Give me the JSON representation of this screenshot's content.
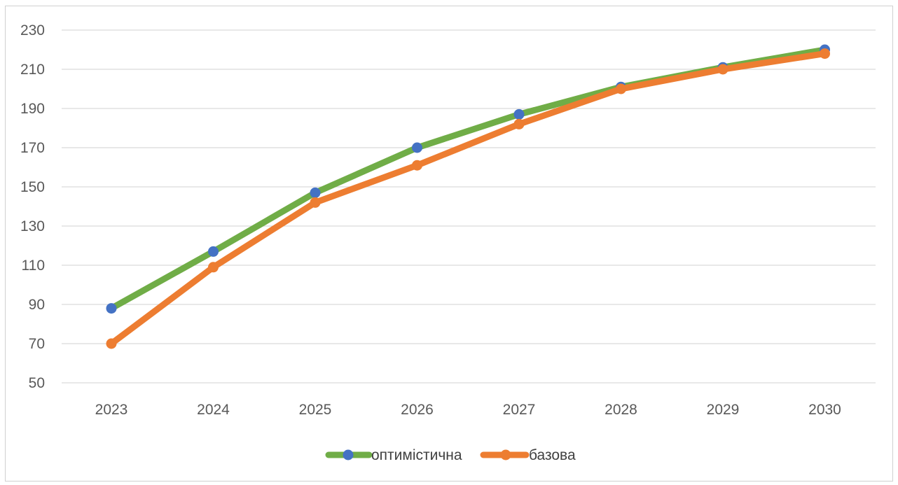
{
  "chart_data": {
    "type": "line",
    "title": "",
    "xlabel": "",
    "ylabel": "",
    "categories": [
      "2023",
      "2024",
      "2025",
      "2026",
      "2027",
      "2028",
      "2029",
      "2030"
    ],
    "ylim": [
      50,
      230
    ],
    "yticks": [
      50,
      70,
      90,
      110,
      130,
      150,
      170,
      190,
      210,
      230
    ],
    "grid": true,
    "legend_position": "bottom",
    "series": [
      {
        "name": "оптимістична",
        "values": [
          88,
          117,
          147,
          170,
          187,
          201,
          211,
          220
        ],
        "line_color": "#70ad47",
        "marker_color": "#4472c4"
      },
      {
        "name": "базова",
        "values": [
          70,
          109,
          142,
          161,
          182,
          200,
          210,
          218
        ],
        "line_color": "#ed7d31",
        "marker_color": "#ed7d31"
      }
    ]
  }
}
